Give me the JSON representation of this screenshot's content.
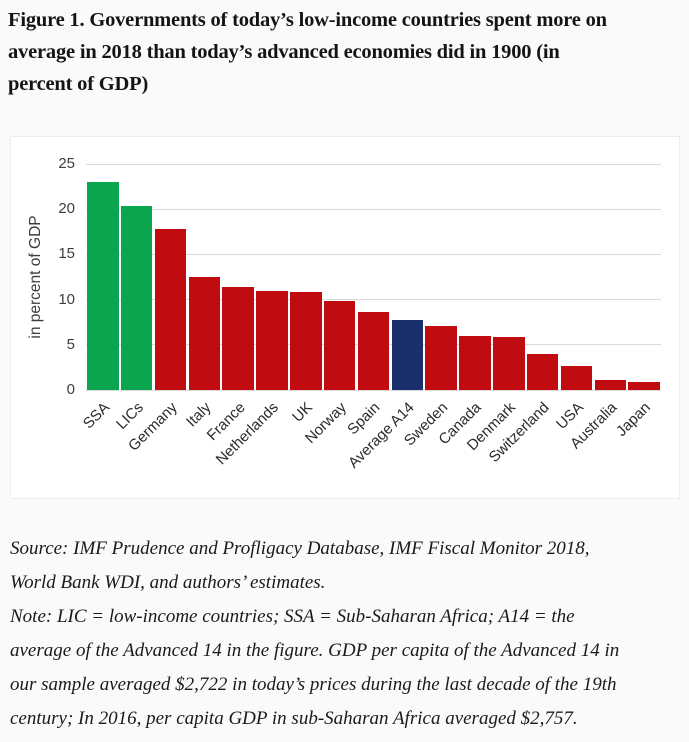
{
  "figure": {
    "title": "Figure 1. Governments of today’s low-income countries spent more on\naverage in 2018 than today’s advanced economies did in 1900 (in\npercent of GDP)"
  },
  "chart_data": {
    "type": "bar",
    "title": "",
    "xlabel": "",
    "ylabel": "in percent of GDP",
    "ylim": [
      0,
      25
    ],
    "yticks": [
      0,
      5,
      10,
      15,
      20,
      25
    ],
    "grid": true,
    "legend": "none",
    "categories": [
      "SSA",
      "LICs",
      "Germany",
      "Italy",
      "France",
      "Netherlands",
      "UK",
      "Norway",
      "Spain",
      "Average A14",
      "Sweden",
      "Canada",
      "Denmark",
      "Switzerland",
      "USA",
      "Australia",
      "Japan"
    ],
    "values": [
      23.0,
      20.4,
      17.8,
      12.5,
      11.4,
      11.0,
      10.8,
      9.9,
      8.6,
      7.8,
      7.1,
      6.0,
      5.9,
      4.0,
      2.7,
      1.1,
      0.9
    ],
    "bar_color_roles": [
      "green",
      "green",
      "red",
      "red",
      "red",
      "red",
      "red",
      "red",
      "red",
      "navy",
      "red",
      "red",
      "red",
      "red",
      "red",
      "red",
      "red"
    ],
    "colors": {
      "green": "#0ba550",
      "red": "#c00b10",
      "navy": "#1a2f6b",
      "gridline": "#d9d9d9"
    }
  },
  "source": "Source: IMF Prudence and Profligacy Database, IMF Fiscal Monitor 2018,\nWorld Bank WDI, and authors’ estimates.",
  "note": "Note: LIC = low-income countries; SSA = Sub-Saharan Africa; A14 = the\naverage of the Advanced 14 in the figure. GDP per capita of the Advanced 14 in\nour sample averaged $2,722 in today’s prices during the last decade of the 19th\ncentury; In 2016, per capita GDP in sub-Saharan Africa averaged $2,757."
}
